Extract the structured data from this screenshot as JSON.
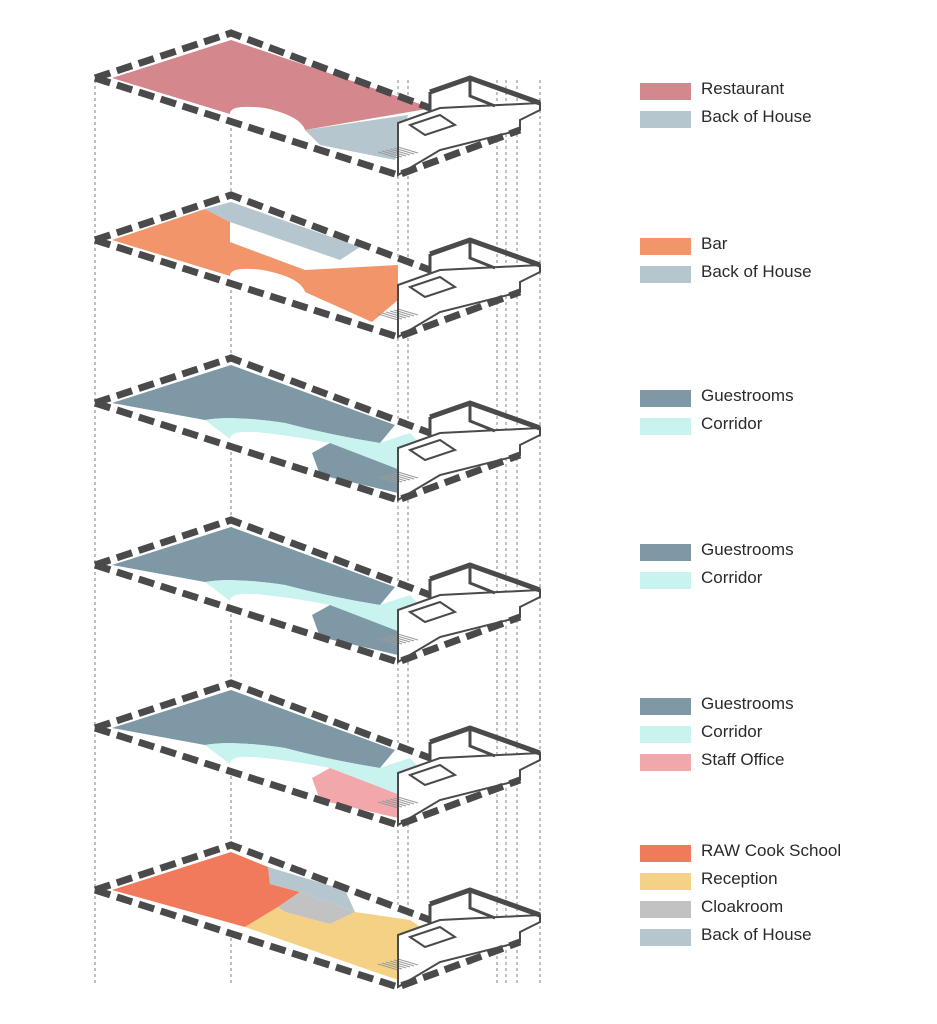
{
  "floors": [
    {
      "id": "top-floor",
      "legend": [
        {
          "label": "Restaurant",
          "color": "#d4878c"
        },
        {
          "label": "Back of House",
          "color": "#b6c6cf"
        }
      ]
    },
    {
      "id": "bar-floor",
      "legend": [
        {
          "label": "Bar",
          "color": "#f3956a"
        },
        {
          "label": "Back of House",
          "color": "#b6c6cf"
        }
      ]
    },
    {
      "id": "guest-floor-a",
      "legend": [
        {
          "label": "Guestrooms",
          "color": "#7f98a5"
        },
        {
          "label": "Corridor",
          "color": "#c8f3ee"
        }
      ]
    },
    {
      "id": "guest-floor-b",
      "legend": [
        {
          "label": "Guestrooms",
          "color": "#7f98a5"
        },
        {
          "label": "Corridor",
          "color": "#c8f3ee"
        }
      ]
    },
    {
      "id": "guest-floor-c",
      "legend": [
        {
          "label": "Guestrooms",
          "color": "#7f98a5"
        },
        {
          "label": "Corridor",
          "color": "#c8f3ee"
        },
        {
          "label": "Staff Office",
          "color": "#f2a7aa"
        }
      ]
    },
    {
      "id": "ground-floor",
      "legend": [
        {
          "label": "RAW Cook School",
          "color": "#f27a5c"
        },
        {
          "label": "Reception",
          "color": "#f5d185"
        },
        {
          "label": "Cloakroom",
          "color": "#c2c2c2"
        },
        {
          "label": "Back of House",
          "color": "#b6c6cf"
        }
      ]
    }
  ],
  "colors": {
    "wall": "#4a4a4a",
    "guideline": "#8a8374"
  }
}
